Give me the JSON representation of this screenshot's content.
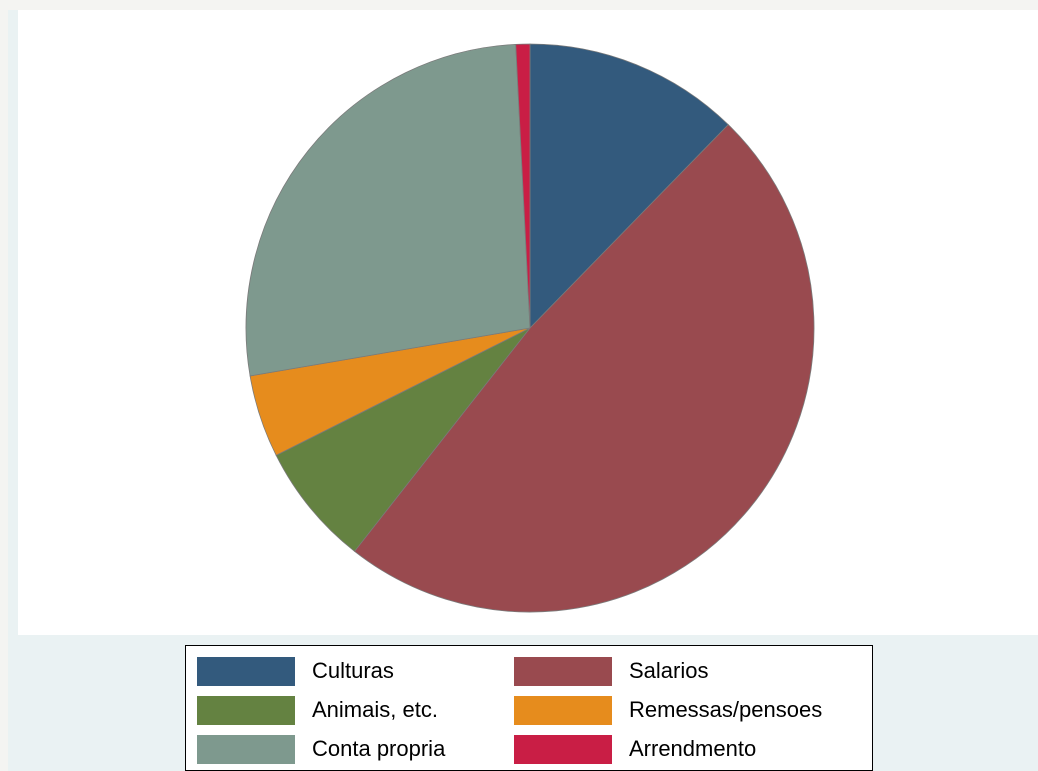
{
  "chart_data": {
    "type": "pie",
    "title": "",
    "start_angle_deg": 90,
    "direction": "clockwise",
    "slices": [
      {
        "label": "Culturas",
        "value": 12.3,
        "color": "#335a7d"
      },
      {
        "label": "Salarios",
        "value": 48.3,
        "color": "#994a4f"
      },
      {
        "label": "Animais, etc.",
        "value": 7.0,
        "color": "#648241"
      },
      {
        "label": "Remessas/pensoes",
        "value": 4.7,
        "color": "#e68c1d"
      },
      {
        "label": "Conta propria",
        "value": 26.9,
        "color": "#7e998e"
      },
      {
        "label": "Arrendmento",
        "value": 0.8,
        "color": "#c91e45"
      }
    ],
    "legend": {
      "position": "bottom",
      "columns": 2,
      "order": [
        "Culturas",
        "Salarios",
        "Animais, etc.",
        "Remessas/pensoes",
        "Conta propria",
        "Arrendmento"
      ]
    }
  },
  "colors": {
    "plot_background": "#ffffff",
    "figure_background": "#eaf2f3",
    "slice_edge": "#7a7a7a"
  }
}
